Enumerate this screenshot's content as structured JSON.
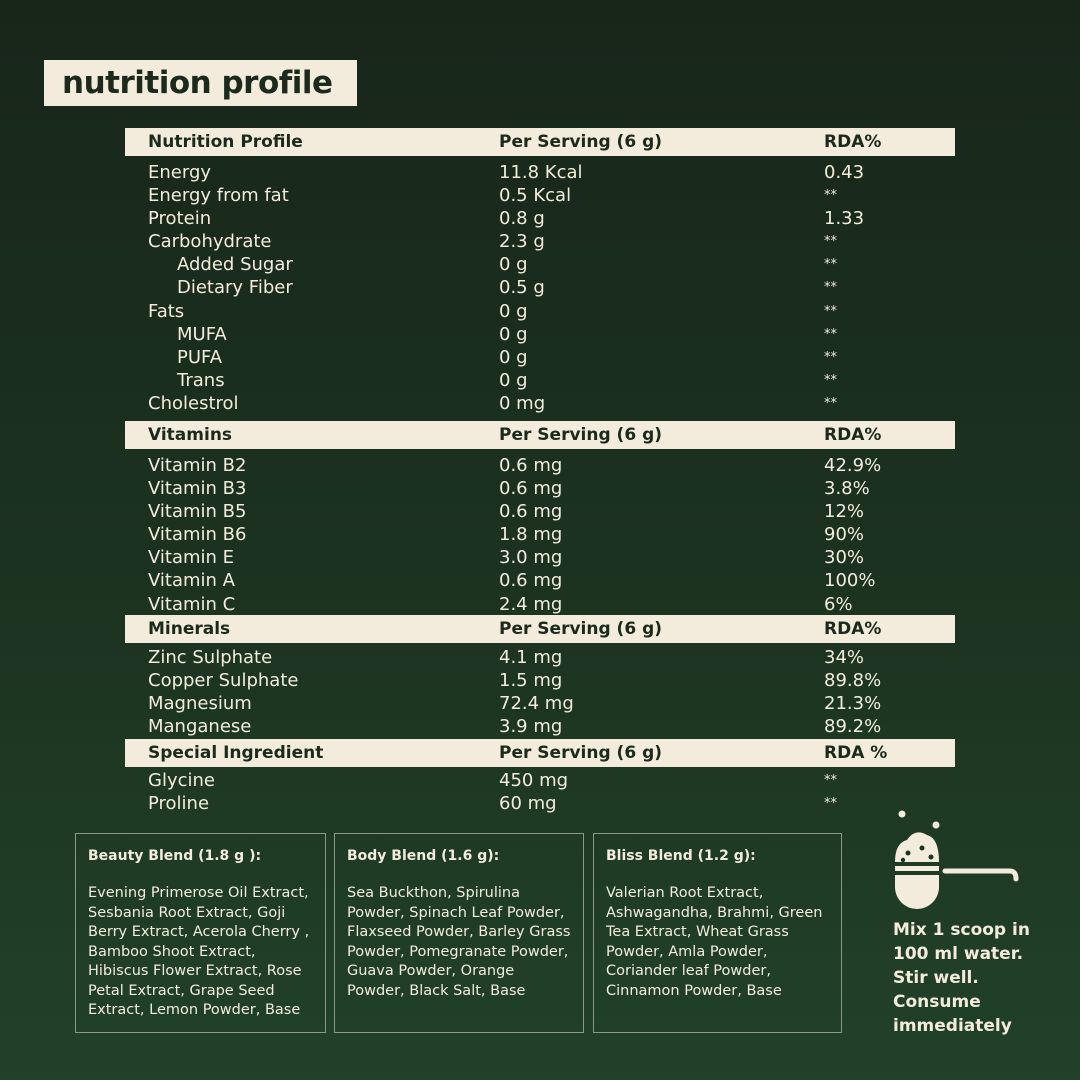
{
  "title": "nutrition profile",
  "sections": [
    {
      "header": [
        "Nutrition Profile",
        "Per Serving (6 g)",
        "RDA%"
      ],
      "rows": [
        [
          "Energy",
          "11.8 Kcal",
          " 0.43",
          false
        ],
        [
          "Energy from fat",
          "0.5 Kcal",
          "**",
          false
        ],
        [
          "Protein",
          "0.8 g",
          "1.33",
          false
        ],
        [
          "Carbohydrate",
          "2.3 g",
          "**",
          false
        ],
        [
          "Added Sugar",
          "0 g",
          "**",
          true
        ],
        [
          "Dietary Fiber",
          "0.5 g",
          "**",
          true
        ],
        [
          "Fats",
          "0 g",
          "**",
          false
        ],
        [
          "MUFA",
          "0 g",
          "**",
          true
        ],
        [
          "PUFA",
          "0 g",
          "**",
          true
        ],
        [
          "Trans",
          "0 g",
          "**",
          true
        ],
        [
          "Cholestrol",
          "0 mg",
          "**",
          false
        ]
      ]
    },
    {
      "header": [
        "Vitamins",
        "Per Serving (6 g)",
        "RDA%"
      ],
      "rows": [
        [
          "Vitamin B2",
          "0.6 mg",
          "42.9%",
          false
        ],
        [
          "Vitamin B3",
          "0.6 mg",
          "3.8%",
          false
        ],
        [
          "Vitamin B5",
          "0.6 mg",
          "12%",
          false
        ],
        [
          "Vitamin B6",
          "1.8 mg",
          "90%",
          false
        ],
        [
          "Vitamin E",
          "3.0 mg",
          "30%",
          false
        ],
        [
          "Vitamin A",
          "0.6 mg",
          "100%",
          false
        ],
        [
          "Vitamin C",
          "2.4 mg",
          "6%",
          false
        ]
      ]
    },
    {
      "header": [
        "Minerals",
        "Per Serving (6 g)",
        "RDA%"
      ],
      "rows": [
        [
          "Zinc Sulphate",
          "4.1 mg",
          "34%",
          false
        ],
        [
          "Copper Sulphate",
          "1.5 mg",
          "89.8%",
          false
        ],
        [
          "Magnesium",
          "72.4 mg",
          "21.3%",
          false
        ],
        [
          "Manganese",
          "3.9 mg",
          "89.2%",
          false
        ]
      ]
    },
    {
      "header": [
        "Special Ingredient",
        "Per Serving (6 g)",
        "RDA %"
      ],
      "rows": [
        [
          "Glycine",
          "450 mg",
          "**",
          false
        ],
        [
          "Proline",
          "60 mg",
          "**",
          false
        ]
      ]
    }
  ],
  "blends": [
    {
      "title": "Beauty Blend (1.8 g ):",
      "text": "Evening Primerose Oil Extract, Sesbania Root Extract, Goji Berry Extract, Acerola Cherry , Bamboo Shoot Extract, Hibiscus Flower Extract, Rose Petal Extract, Grape Seed Extract, Lemon Powder, Base"
    },
    {
      "title": "Body Blend (1.6 g):",
      "text": "Sea Buckthon, Spirulina Powder, Spinach Leaf Powder, Flaxseed Powder, Barley Grass Powder, Pomegranate Powder, Guava Powder, Orange Powder, Black Salt, Base"
    },
    {
      "title": "Bliss Blend (1.2 g):",
      "text": "Valerian Root Extract, Ashwagandha, Brahmi, Green Tea Extract, Wheat Grass Powder, Amla Powder, Coriander leaf Powder, Cinnamon Powder, Base"
    }
  ],
  "instructions": {
    "icon": "scoop-icon",
    "lines": [
      "Mix 1 scoop in",
      "100 ml water.",
      "Stir well.",
      "Consume",
      "immediately"
    ]
  }
}
